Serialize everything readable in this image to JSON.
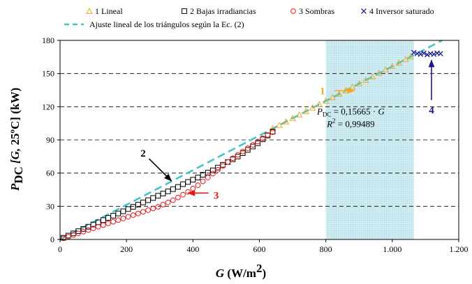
{
  "chart_data": {
    "type": "scatter",
    "xlabel": {
      "main": "G",
      "unit_left": " (W/m",
      "unit_sup": "2",
      "unit_right": ")"
    },
    "ylabel": {
      "main": "P",
      "sub": "DC",
      "rest_italic": "[G,",
      "rest": " 25ºC] (kW)"
    },
    "xlim": [
      0,
      1200
    ],
    "ylim": [
      0,
      180
    ],
    "x_ticks": [
      "0",
      "200",
      "400",
      "600",
      "800",
      "1.000",
      "1.200"
    ],
    "y_ticks": [
      "0",
      "30",
      "60",
      "90",
      "120",
      "150",
      "180"
    ],
    "grid": "horizontal-dashed",
    "shaded_x_range": [
      800,
      1065
    ],
    "colors": {
      "lineal": "#f5a623",
      "bajas": "#000000",
      "sombras": "#e8181c",
      "inversor": "#1a1a8c",
      "fit": "#40c4c4",
      "shade": "#a8dce6",
      "arrow1": "#f5a623",
      "arrow2": "#000000",
      "arrow3": "#e8181c",
      "arrow4": "#1a1a8c"
    },
    "legend": [
      {
        "key": "lineal",
        "label": "1 Lineal",
        "marker": "triangle"
      },
      {
        "key": "bajas",
        "label": "2 Bajas irradiancias",
        "marker": "square"
      },
      {
        "key": "sombras",
        "label": "3 Sombras",
        "marker": "circle"
      },
      {
        "key": "inversor",
        "label": "4 Inversor saturado",
        "marker": "x"
      },
      {
        "key": "fit",
        "label": "Ajuste lineal de los triángulos según la Ec. (2)",
        "marker": "dashed-line"
      }
    ],
    "fit": {
      "slope": 0.15665,
      "x_range": [
        0,
        1150
      ]
    },
    "series": [
      {
        "key": "lineal",
        "name": "1 Lineal",
        "marker": "triangle",
        "x": [
          640,
          660,
          680,
          700,
          720,
          740,
          760,
          780,
          800,
          820,
          840,
          860,
          880,
          900,
          920,
          940,
          960,
          980,
          1000,
          1020,
          1040,
          1055
        ],
        "y": [
          100.3,
          103.4,
          106.5,
          109.7,
          112.8,
          115.9,
          119.1,
          122.2,
          125.3,
          128.5,
          131.6,
          134.7,
          137.9,
          141.0,
          144.1,
          147.3,
          150.4,
          153.5,
          156.7,
          159.8,
          162.9,
          165.3
        ]
      },
      {
        "key": "bajas",
        "name": "2 Bajas irradiancias",
        "marker": "square",
        "x": [
          10,
          25,
          40,
          55,
          70,
          85,
          100,
          115,
          130,
          145,
          160,
          175,
          190,
          205,
          220,
          235,
          250,
          265,
          280,
          295,
          310,
          325,
          340,
          355,
          370,
          385,
          400,
          415,
          430,
          445,
          460,
          475,
          490,
          505,
          520,
          535,
          550,
          565,
          580,
          595,
          610,
          625,
          640
        ],
        "y": [
          1.5,
          3.5,
          5.5,
          7.5,
          9.5,
          11.5,
          13.5,
          15.5,
          17.5,
          19.5,
          21.5,
          23.5,
          25.5,
          27.5,
          29.5,
          31.5,
          33.5,
          35.5,
          37.5,
          39.5,
          41.5,
          43.5,
          45.5,
          47.5,
          50.0,
          52.0,
          54.0,
          56.0,
          58.5,
          60.5,
          62.5,
          65.0,
          67.5,
          70.0,
          72.5,
          75.0,
          78.0,
          81.0,
          84.0,
          87.0,
          90.5,
          94.0,
          97.5
        ]
      },
      {
        "key": "sombras",
        "name": "3 Sombras",
        "marker": "circle",
        "x": [
          10,
          25,
          40,
          55,
          70,
          85,
          100,
          115,
          130,
          145,
          160,
          175,
          190,
          205,
          220,
          235,
          250,
          265,
          280,
          295,
          310,
          325,
          340,
          355,
          370,
          385,
          400,
          415,
          430,
          445,
          460,
          475,
          490,
          505,
          520,
          535,
          550,
          565,
          580,
          595,
          610,
          625,
          640
        ],
        "y": [
          1.0,
          2.5,
          4.0,
          5.5,
          7.0,
          8.5,
          10.0,
          11.5,
          13.0,
          14.5,
          16.0,
          17.5,
          19.0,
          20.5,
          22.0,
          23.5,
          25.0,
          26.5,
          28.0,
          29.5,
          31.5,
          33.5,
          35.5,
          38.0,
          40.5,
          43.0,
          46.0,
          49.0,
          52.5,
          56.0,
          59.5,
          63.0,
          66.5,
          70.0,
          73.5,
          76.5,
          79.5,
          82.5,
          85.5,
          88.5,
          91.5,
          94.5,
          97.0
        ]
      },
      {
        "key": "inversor",
        "name": "4 Inversor saturado",
        "marker": "x",
        "x": [
          1065,
          1075,
          1085,
          1095,
          1105,
          1115,
          1125,
          1135,
          1145
        ],
        "y": [
          169.0,
          168.0,
          167.5,
          168.5,
          167.0,
          168.0,
          167.5,
          168.5,
          168.0
        ]
      }
    ],
    "annotations": [
      {
        "key": "ann1",
        "label": "1",
        "color_key": "arrow1",
        "text_at": [
          790,
          134.5
        ],
        "from": [
          826,
          134.5
        ],
        "to": [
          886,
          134.5
        ]
      },
      {
        "key": "ann2",
        "label": "2",
        "color_key": "arrow2",
        "text_at": [
          250,
          78
        ],
        "from": [
          268,
          73
        ],
        "to": [
          335,
          53
        ]
      },
      {
        "key": "ann3",
        "label": "3",
        "color_key": "arrow3",
        "text_at": [
          470,
          40
        ],
        "from": [
          447,
          42
        ],
        "to": [
          385,
          42
        ]
      },
      {
        "key": "ann4",
        "label": "4",
        "color_key": "arrow4",
        "text_at": [
          1118,
          117
        ],
        "from": [
          1118,
          126
        ],
        "to": [
          1118,
          162
        ]
      }
    ],
    "equation": {
      "p": "P",
      "sub": "DC",
      "rest": " = 0,15665 · ",
      "g": "G",
      "r": "R",
      "sup": "2",
      "r_rest": " = 0,99489",
      "anchor": [
        875,
        113
      ]
    }
  }
}
